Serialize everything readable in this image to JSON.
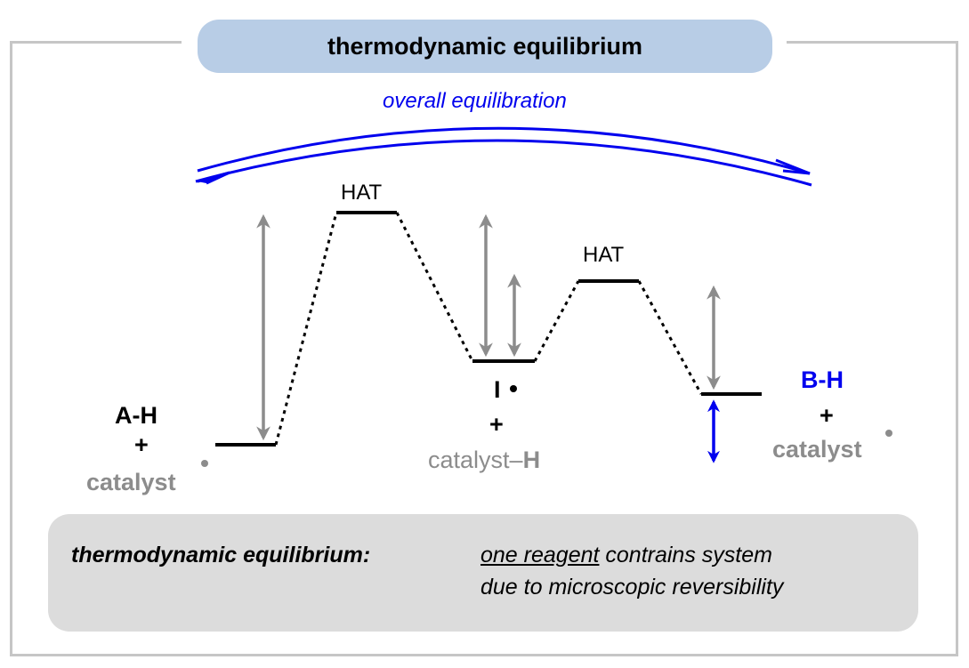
{
  "title": "thermodynamic equilibrium",
  "overall_label": "overall equilibration",
  "levels": {
    "ts1": "HAT",
    "ts2": "HAT"
  },
  "species": {
    "start_reactant": "A-H",
    "start_plus": "+",
    "start_catalyst": "catalyst",
    "intermediate": "I",
    "intermediate_plus": "+",
    "intermediate_catalyst": "catalyst–",
    "intermediate_catalyst_h": "H",
    "product": "B-H",
    "product_plus": "+",
    "product_catalyst": "catalyst"
  },
  "note": {
    "heading": "thermodynamic equilibrium:",
    "underlined": "one reagent",
    "line1_rest": " contrains system",
    "line2": "due to microscopic reversibility"
  },
  "colors": {
    "accent_blue": "#0000ee",
    "gray_arrow": "#8c8c8c",
    "title_fill": "#b8cde6",
    "note_fill": "#dcdcdc",
    "frame": "#c6c6c6"
  }
}
